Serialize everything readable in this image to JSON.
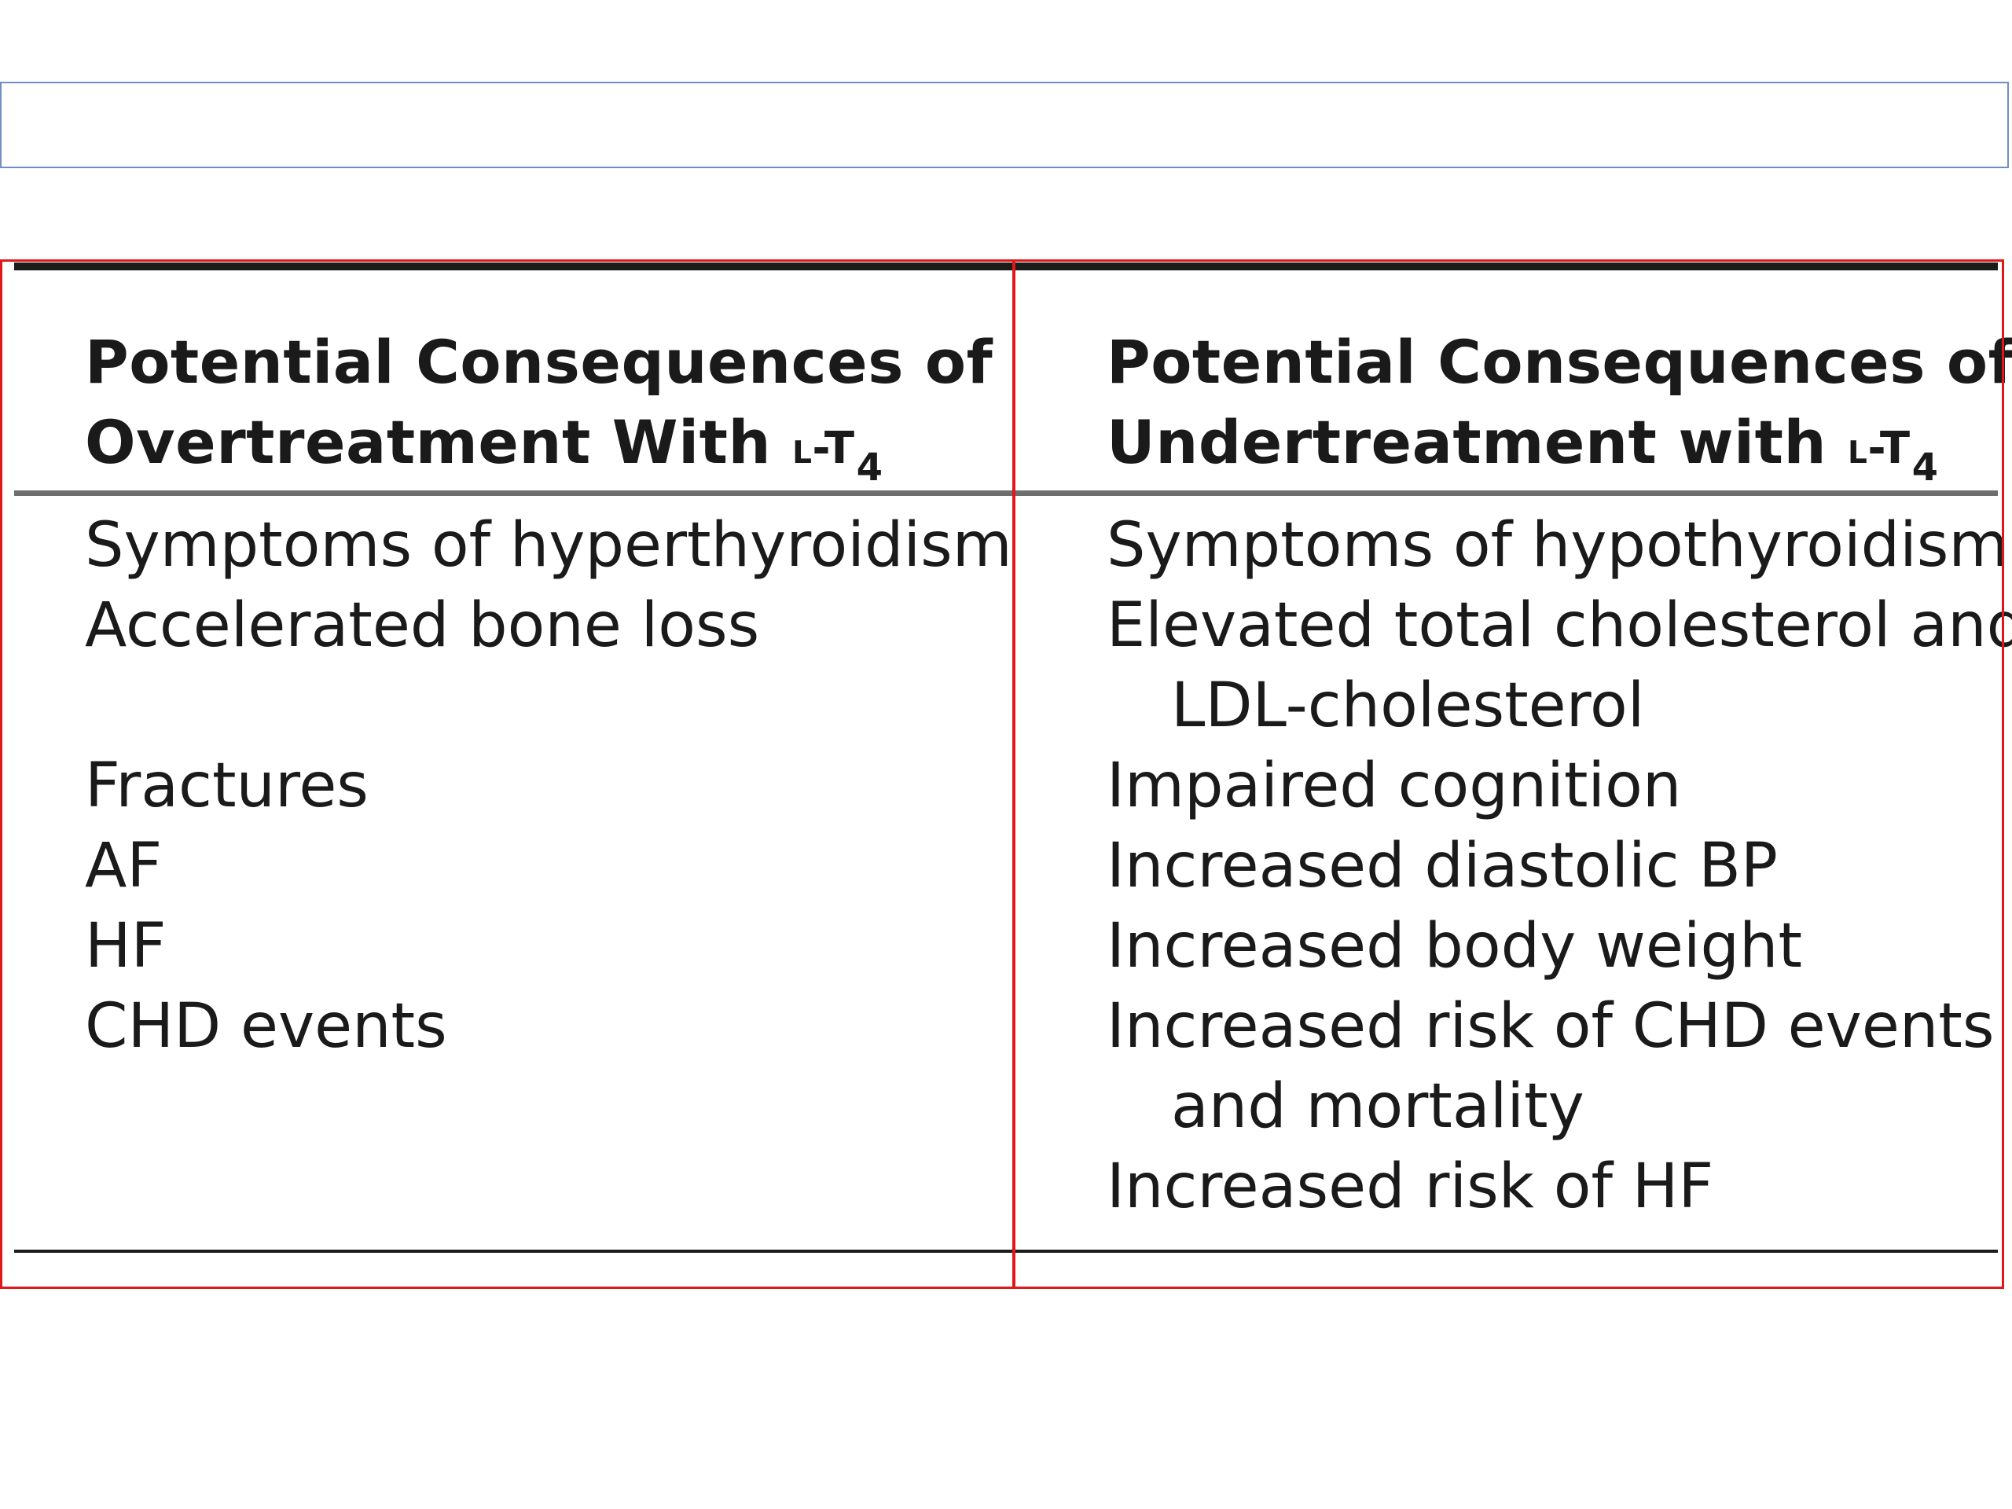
{
  "table": {
    "columns": [
      {
        "heading_line1": "Potential Consequences of",
        "heading_line2": "Overtreatment With",
        "heading_drug": "l-T",
        "heading_subscript": "4",
        "rows": [
          {
            "text": "Symptoms of hyperthyroidism",
            "continuation": ""
          },
          {
            "text": "Accelerated bone loss",
            "continuation": ""
          },
          {
            "text": "Fractures",
            "continuation": ""
          },
          {
            "text": "AF",
            "continuation": ""
          },
          {
            "text": "HF",
            "continuation": ""
          },
          {
            "text": "CHD events",
            "continuation": ""
          }
        ]
      },
      {
        "heading_line1": "Potential Consequences of",
        "heading_line2": "Undertreatment with",
        "heading_drug": "l-T",
        "heading_subscript": "4",
        "rows": [
          {
            "text": "Symptoms of hypothyroidism",
            "continuation": ""
          },
          {
            "text": "Elevated total cholesterol and",
            "continuation": "LDL-cholesterol"
          },
          {
            "text": "Impaired cognition",
            "continuation": ""
          },
          {
            "text": "Increased diastolic BP",
            "continuation": ""
          },
          {
            "text": "Increased body weight",
            "continuation": ""
          },
          {
            "text": "Increased risk of CHD events",
            "continuation": "and mortality"
          },
          {
            "text": "Increased risk of HF",
            "continuation": ""
          }
        ]
      }
    ]
  }
}
